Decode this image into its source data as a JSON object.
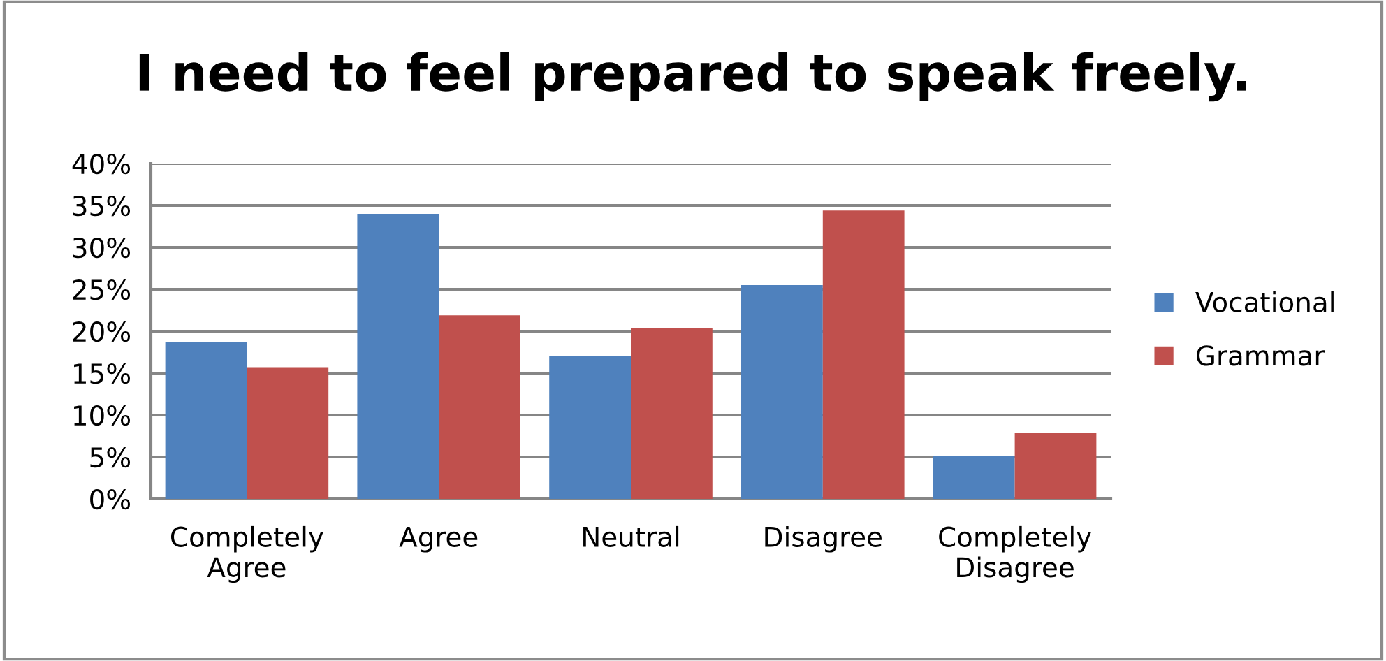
{
  "chart_data": {
    "type": "bar",
    "title": "I need to feel prepared to speak freely.",
    "categories": [
      "Completely\nAgree",
      "Agree",
      "Neutral",
      "Disagree",
      "Completely\nDisagree"
    ],
    "series": [
      {
        "name": "Vocational",
        "color": "#4f81bd",
        "values": [
          18.7,
          34.0,
          17.0,
          25.5,
          5.1
        ]
      },
      {
        "name": "Grammar",
        "color": "#c0504d",
        "values": [
          15.7,
          21.9,
          20.4,
          34.4,
          7.9
        ]
      }
    ],
    "ylim": [
      0,
      40
    ],
    "yticks": [
      {
        "value": 0,
        "label": "0%"
      },
      {
        "value": 5,
        "label": "5%"
      },
      {
        "value": 10,
        "label": "10%"
      },
      {
        "value": 15,
        "label": "15%"
      },
      {
        "value": 20,
        "label": "20%"
      },
      {
        "value": 25,
        "label": "25%"
      },
      {
        "value": 30,
        "label": "30%"
      },
      {
        "value": 35,
        "label": "35%"
      },
      {
        "value": 40,
        "label": "40%"
      }
    ],
    "grid": "y",
    "legend": "right"
  }
}
